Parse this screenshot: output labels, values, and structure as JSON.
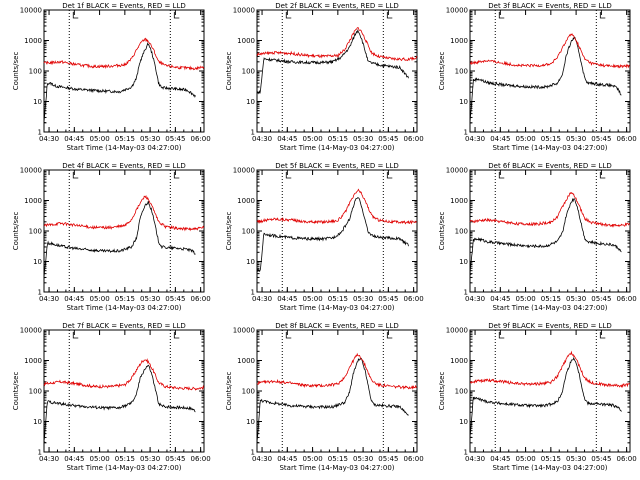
{
  "chart_data": [
    {
      "type": "line",
      "title": "Det 1f BLACK = Events, RED = LLD",
      "xlabel": "Start Time (14-May-03 04:27:00)",
      "ylabel": "Counts/sec",
      "x_ticks": [
        "04:30",
        "04:45",
        "05:00",
        "05:15",
        "05:30",
        "05:45",
        "06:00"
      ],
      "y_ticks": [
        "1",
        "10",
        "100",
        "1000",
        "10000"
      ],
      "yscale": "log",
      "ylim": [
        1,
        10000
      ],
      "xlim_minutes": [
        0,
        95
      ],
      "dotted_lines": [
        "04:42",
        "05:42"
      ],
      "series": [
        {
          "name": "Events",
          "color": "#000000",
          "x_minutes": [
            0,
            2,
            5,
            6,
            10,
            20,
            35,
            45,
            52,
            55,
            57,
            60,
            62,
            64,
            66,
            68,
            70,
            75,
            80,
            85,
            88,
            90
          ],
          "values": [
            2,
            40,
            38,
            33,
            30,
            25,
            22,
            21,
            30,
            60,
            200,
            500,
            800,
            400,
            150,
            40,
            28,
            27,
            25,
            24,
            18,
            15
          ]
        },
        {
          "name": "LLD",
          "color": "#e00000",
          "x_minutes": [
            0,
            10,
            20,
            30,
            40,
            48,
            52,
            55,
            58,
            60,
            62,
            65,
            68,
            72,
            80,
            90,
            95
          ],
          "values": [
            180,
            200,
            160,
            140,
            145,
            160,
            250,
            500,
            900,
            1100,
            950,
            500,
            200,
            150,
            130,
            120,
            140
          ]
        }
      ]
    },
    {
      "type": "line",
      "title": "Det 2f BLACK = Events, RED = LLD",
      "xlabel": "Start Time (14-May-03 04:27:00)",
      "ylabel": "Counts/sec",
      "x_ticks": [
        "04:30",
        "04:45",
        "05:00",
        "05:15",
        "05:30",
        "05:45",
        "06:00"
      ],
      "y_ticks": [
        "1",
        "10",
        "100",
        "1000",
        "10000"
      ],
      "yscale": "log",
      "ylim": [
        1,
        10000
      ],
      "xlim_minutes": [
        0,
        95
      ],
      "dotted_lines": [
        "04:42",
        "05:42"
      ],
      "series": [
        {
          "name": "Events",
          "color": "#000000",
          "x_minutes": [
            0,
            2,
            4,
            10,
            20,
            30,
            40,
            45,
            50,
            55,
            58,
            60,
            62,
            64,
            66,
            70,
            75,
            80,
            85,
            88,
            90
          ],
          "values": [
            20,
            20,
            250,
            230,
            200,
            190,
            190,
            200,
            280,
            600,
            1500,
            2200,
            1200,
            500,
            200,
            170,
            150,
            140,
            130,
            80,
            60
          ]
        },
        {
          "name": "LLD",
          "color": "#e00000",
          "x_minutes": [
            0,
            10,
            20,
            30,
            40,
            48,
            52,
            55,
            58,
            60,
            62,
            65,
            68,
            72,
            80,
            90,
            95
          ],
          "values": [
            350,
            400,
            380,
            320,
            300,
            320,
            500,
            1000,
            2000,
            2600,
            2000,
            900,
            400,
            300,
            250,
            240,
            280
          ]
        }
      ]
    },
    {
      "type": "line",
      "title": "Det 3f BLACK = Events, RED = LLD",
      "xlabel": "Start Time (14-May-03 04:27:00)",
      "ylabel": "Counts/sec",
      "x_ticks": [
        "04:30",
        "04:45",
        "05:00",
        "05:15",
        "05:30",
        "05:45",
        "06:00"
      ],
      "y_ticks": [
        "1",
        "10",
        "100",
        "1000",
        "10000"
      ],
      "yscale": "log",
      "ylim": [
        1,
        10000
      ],
      "xlim_minutes": [
        0,
        95
      ],
      "dotted_lines": [
        "04:42",
        "05:42"
      ],
      "series": [
        {
          "name": "Events",
          "color": "#000000",
          "x_minutes": [
            0,
            2,
            5,
            10,
            20,
            35,
            45,
            52,
            55,
            57,
            60,
            62,
            64,
            66,
            68,
            70,
            75,
            80,
            85,
            88,
            90
          ],
          "values": [
            2,
            50,
            55,
            42,
            35,
            30,
            30,
            40,
            80,
            300,
            900,
            1300,
            600,
            200,
            60,
            40,
            38,
            35,
            33,
            25,
            15
          ]
        },
        {
          "name": "LLD",
          "color": "#e00000",
          "x_minutes": [
            0,
            10,
            20,
            30,
            40,
            48,
            52,
            55,
            58,
            60,
            62,
            65,
            68,
            72,
            80,
            90,
            95
          ],
          "values": [
            180,
            220,
            180,
            150,
            150,
            170,
            280,
            600,
            1200,
            1600,
            1300,
            600,
            250,
            180,
            150,
            140,
            150
          ]
        }
      ]
    },
    {
      "type": "line",
      "title": "Det 4f BLACK = Events, RED = LLD",
      "xlabel": "Start Time (14-May-03 04:27:00)",
      "ylabel": "Counts/sec",
      "x_ticks": [
        "04:30",
        "04:45",
        "05:00",
        "05:15",
        "05:30",
        "05:45",
        "06:00"
      ],
      "y_ticks": [
        "1",
        "10",
        "100",
        "1000",
        "10000"
      ],
      "yscale": "log",
      "ylim": [
        1,
        10000
      ],
      "xlim_minutes": [
        0,
        95
      ],
      "dotted_lines": [
        "04:42",
        "05:42"
      ],
      "series": [
        {
          "name": "Events",
          "color": "#000000",
          "x_minutes": [
            0,
            2,
            5,
            10,
            20,
            35,
            45,
            52,
            55,
            57,
            60,
            62,
            64,
            66,
            68,
            70,
            75,
            80,
            85,
            88,
            90
          ],
          "values": [
            3,
            40,
            38,
            32,
            26,
            22,
            22,
            30,
            60,
            250,
            700,
            900,
            450,
            150,
            45,
            30,
            28,
            27,
            25,
            22,
            18
          ]
        },
        {
          "name": "LLD",
          "color": "#e00000",
          "x_minutes": [
            0,
            10,
            20,
            30,
            40,
            48,
            52,
            55,
            58,
            60,
            62,
            65,
            68,
            72,
            80,
            90,
            95
          ],
          "values": [
            150,
            180,
            150,
            130,
            130,
            150,
            240,
            500,
            1000,
            1400,
            1100,
            500,
            200,
            140,
            120,
            115,
            130
          ]
        }
      ]
    },
    {
      "type": "line",
      "title": "Det 5f BLACK = Events, RED = LLD",
      "xlabel": "Start Time (14-May-03 04:27:00)",
      "ylabel": "Counts/sec",
      "x_ticks": [
        "04:30",
        "04:45",
        "05:00",
        "05:15",
        "05:30",
        "05:45",
        "06:00"
      ],
      "y_ticks": [
        "1",
        "10",
        "100",
        "1000",
        "10000"
      ],
      "yscale": "log",
      "ylim": [
        1,
        10000
      ],
      "xlim_minutes": [
        0,
        95
      ],
      "dotted_lines": [
        "04:42",
        "05:42"
      ],
      "series": [
        {
          "name": "Events",
          "color": "#000000",
          "x_minutes": [
            0,
            2,
            4,
            10,
            20,
            30,
            40,
            45,
            50,
            55,
            58,
            60,
            62,
            64,
            66,
            70,
            75,
            80,
            85,
            88,
            90
          ],
          "values": [
            5,
            5,
            80,
            70,
            60,
            55,
            55,
            60,
            90,
            250,
            900,
            1300,
            700,
            250,
            90,
            65,
            60,
            58,
            55,
            40,
            35
          ]
        },
        {
          "name": "LLD",
          "color": "#e00000",
          "x_minutes": [
            0,
            10,
            20,
            30,
            40,
            48,
            52,
            55,
            58,
            60,
            62,
            65,
            68,
            72,
            80,
            90,
            95
          ],
          "values": [
            200,
            250,
            230,
            200,
            200,
            220,
            380,
            800,
            1600,
            2200,
            1700,
            800,
            320,
            230,
            200,
            190,
            210
          ]
        }
      ]
    },
    {
      "type": "line",
      "title": "Det 6f BLACK = Events, RED = LLD",
      "xlabel": "Start Time (14-May-03 04:27:00)",
      "ylabel": "Counts/sec",
      "x_ticks": [
        "04:30",
        "04:45",
        "05:00",
        "05:15",
        "05:30",
        "05:45",
        "06:00"
      ],
      "y_ticks": [
        "1",
        "10",
        "100",
        "1000",
        "10000"
      ],
      "yscale": "log",
      "ylim": [
        1,
        10000
      ],
      "xlim_minutes": [
        0,
        95
      ],
      "dotted_lines": [
        "04:42",
        "05:42"
      ],
      "series": [
        {
          "name": "Events",
          "color": "#000000",
          "x_minutes": [
            0,
            2,
            5,
            10,
            20,
            35,
            45,
            52,
            55,
            57,
            60,
            62,
            64,
            66,
            68,
            70,
            75,
            80,
            85,
            88,
            90
          ],
          "values": [
            4,
            50,
            55,
            45,
            38,
            32,
            32,
            45,
            90,
            300,
            900,
            1200,
            550,
            180,
            60,
            45,
            40,
            38,
            35,
            28,
            20
          ]
        },
        {
          "name": "LLD",
          "color": "#e00000",
          "x_minutes": [
            0,
            10,
            20,
            30,
            40,
            48,
            52,
            55,
            58,
            60,
            62,
            65,
            68,
            72,
            80,
            90,
            95
          ],
          "values": [
            200,
            230,
            200,
            170,
            170,
            190,
            300,
            650,
            1300,
            1800,
            1400,
            650,
            260,
            190,
            160,
            150,
            170
          ]
        }
      ]
    },
    {
      "type": "line",
      "title": "Det 7f BLACK = Events, RED = LLD",
      "xlabel": "Start Time (14-May-03 04:27:00)",
      "ylabel": "Counts/sec",
      "x_ticks": [
        "04:30",
        "04:45",
        "05:00",
        "05:15",
        "05:30",
        "05:45",
        "06:00"
      ],
      "y_ticks": [
        "1",
        "10",
        "100",
        "1000",
        "10000"
      ],
      "yscale": "log",
      "ylim": [
        1,
        10000
      ],
      "xlim_minutes": [
        0,
        95
      ],
      "dotted_lines": [
        "04:42",
        "05:42"
      ],
      "series": [
        {
          "name": "Events",
          "color": "#000000",
          "x_minutes": [
            0,
            2,
            5,
            10,
            20,
            35,
            45,
            52,
            55,
            57,
            60,
            62,
            64,
            66,
            68,
            70,
            75,
            80,
            85,
            88,
            90
          ],
          "values": [
            2,
            45,
            42,
            38,
            32,
            28,
            28,
            40,
            80,
            250,
            550,
            700,
            350,
            120,
            40,
            32,
            30,
            29,
            28,
            26,
            22
          ]
        },
        {
          "name": "LLD",
          "color": "#e00000",
          "x_minutes": [
            0,
            10,
            20,
            30,
            40,
            48,
            52,
            55,
            58,
            60,
            62,
            65,
            68,
            72,
            80,
            90,
            95
          ],
          "values": [
            170,
            200,
            170,
            140,
            140,
            160,
            260,
            500,
            900,
            1100,
            900,
            450,
            190,
            140,
            125,
            120,
            130
          ]
        }
      ]
    },
    {
      "type": "line",
      "title": "Det 8f BLACK = Events, RED = LLD",
      "xlabel": "Start Time (14-May-03 04:27:00)",
      "ylabel": "Counts/sec",
      "x_ticks": [
        "04:30",
        "04:45",
        "05:00",
        "05:15",
        "05:30",
        "05:45",
        "06:00"
      ],
      "y_ticks": [
        "1",
        "10",
        "100",
        "1000",
        "10000"
      ],
      "yscale": "log",
      "ylim": [
        1,
        10000
      ],
      "xlim_minutes": [
        0,
        95
      ],
      "dotted_lines": [
        "04:42",
        "05:42"
      ],
      "series": [
        {
          "name": "Events",
          "color": "#000000",
          "x_minutes": [
            0,
            2,
            5,
            10,
            20,
            35,
            45,
            52,
            55,
            57,
            60,
            62,
            64,
            66,
            68,
            70,
            75,
            80,
            85,
            88,
            90
          ],
          "values": [
            2,
            50,
            45,
            40,
            33,
            30,
            30,
            42,
            90,
            350,
            1000,
            1100,
            500,
            150,
            45,
            35,
            33,
            32,
            30,
            20,
            15
          ]
        },
        {
          "name": "LLD",
          "color": "#e00000",
          "x_minutes": [
            0,
            10,
            20,
            30,
            40,
            48,
            52,
            55,
            58,
            60,
            62,
            65,
            68,
            72,
            80,
            90,
            95
          ],
          "values": [
            180,
            210,
            180,
            150,
            150,
            170,
            280,
            600,
            1200,
            1600,
            1200,
            550,
            220,
            160,
            140,
            130,
            140
          ]
        }
      ]
    },
    {
      "type": "line",
      "title": "Det 9f BLACK = Events, RED = LLD",
      "xlabel": "Start Time (14-May-03 04:27:00)",
      "ylabel": "Counts/sec",
      "x_ticks": [
        "04:30",
        "04:45",
        "05:00",
        "05:15",
        "05:30",
        "05:45",
        "06:00"
      ],
      "y_ticks": [
        "1",
        "10",
        "100",
        "1000",
        "10000"
      ],
      "yscale": "log",
      "ylim": [
        1,
        10000
      ],
      "xlim_minutes": [
        0,
        95
      ],
      "dotted_lines": [
        "04:42",
        "05:42"
      ],
      "series": [
        {
          "name": "Events",
          "color": "#000000",
          "x_minutes": [
            0,
            2,
            5,
            10,
            20,
            35,
            45,
            52,
            55,
            57,
            60,
            62,
            64,
            66,
            68,
            70,
            75,
            80,
            85,
            88,
            90
          ],
          "values": [
            3,
            60,
            55,
            45,
            38,
            33,
            33,
            45,
            100,
            350,
            950,
            1200,
            550,
            180,
            55,
            40,
            38,
            36,
            34,
            28,
            22
          ]
        },
        {
          "name": "LLD",
          "color": "#e00000",
          "x_minutes": [
            0,
            10,
            20,
            30,
            40,
            48,
            52,
            55,
            58,
            60,
            62,
            65,
            68,
            72,
            80,
            90,
            95
          ],
          "values": [
            200,
            230,
            200,
            170,
            170,
            190,
            310,
            650,
            1300,
            1800,
            1400,
            650,
            260,
            190,
            160,
            150,
            170
          ]
        }
      ]
    }
  ]
}
